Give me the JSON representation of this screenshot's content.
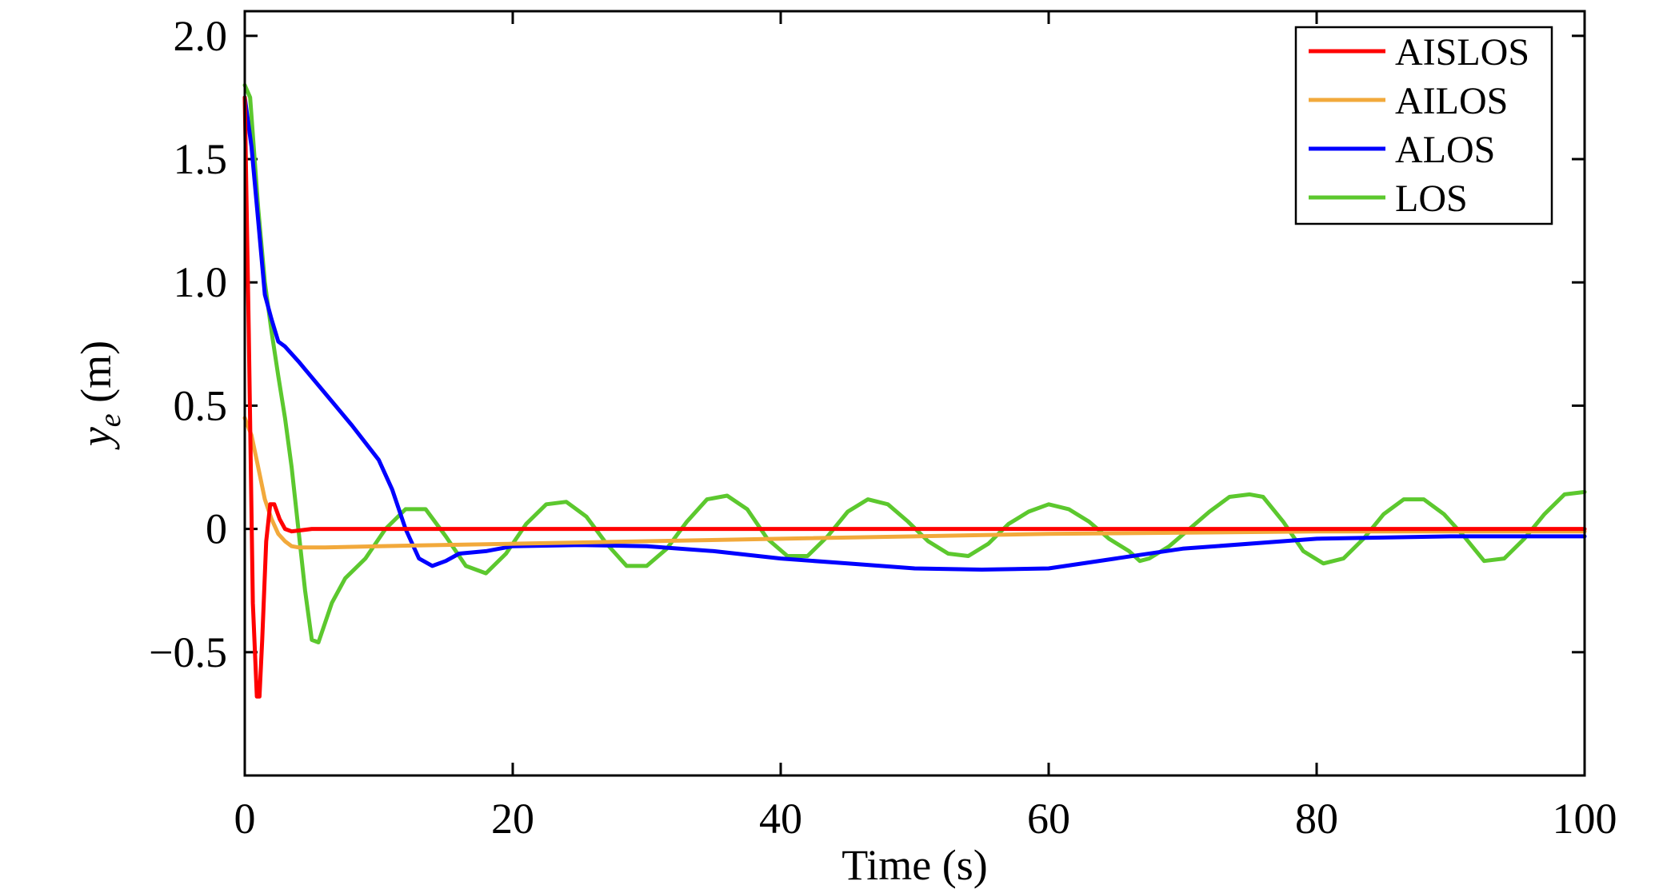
{
  "chart_data": {
    "type": "line",
    "title": "",
    "xlabel": "Time (s)",
    "ylabel": {
      "main": "y",
      "sub": "e",
      "unit": " (m)"
    },
    "xlim": [
      0,
      100
    ],
    "ylim": [
      -1.0,
      2.1
    ],
    "xticks": [
      0,
      20,
      40,
      60,
      80,
      100
    ],
    "xtick_labels": [
      "0",
      "20",
      "40",
      "60",
      "80",
      "100"
    ],
    "yticks": [
      -0.5,
      0,
      0.5,
      1.0,
      1.5,
      2.0
    ],
    "ytick_labels": [
      "−0.5",
      "0",
      "0.5",
      "1.0",
      "1.5",
      "2.0"
    ],
    "grid": false,
    "legend_position": "top-right",
    "series": [
      {
        "name": "AISLOS",
        "color": "#ff0000",
        "x": [
          0,
          0.3,
          0.6,
          0.9,
          1.1,
          1.3,
          1.6,
          1.9,
          2.2,
          2.6,
          3.0,
          3.5,
          5,
          10,
          20,
          40,
          60,
          80,
          100
        ],
        "y": [
          1.75,
          0.8,
          -0.3,
          -0.68,
          -0.68,
          -0.45,
          -0.05,
          0.1,
          0.1,
          0.04,
          0.0,
          -0.01,
          0.0,
          0.0,
          0.0,
          0.0,
          0.0,
          0.0,
          0.0
        ]
      },
      {
        "name": "AILOS",
        "color": "#f2a93b",
        "x": [
          0,
          0.5,
          1.0,
          1.5,
          2.0,
          2.5,
          3.0,
          3.5,
          4.0,
          6,
          10,
          20,
          30,
          40,
          60,
          80,
          100
        ],
        "y": [
          0.45,
          0.38,
          0.25,
          0.12,
          0.04,
          -0.02,
          -0.05,
          -0.07,
          -0.075,
          -0.075,
          -0.07,
          -0.06,
          -0.05,
          -0.04,
          -0.02,
          -0.01,
          -0.01
        ]
      },
      {
        "name": "ALOS",
        "color": "#0000ff",
        "x": [
          0,
          0.5,
          1.0,
          1.5,
          2.0,
          2.5,
          3,
          4,
          6,
          8,
          10,
          11,
          12,
          13,
          14,
          15,
          16,
          18,
          20,
          25,
          30,
          35,
          40,
          45,
          50,
          55,
          60,
          65,
          70,
          80,
          90,
          100
        ],
        "y": [
          1.75,
          1.55,
          1.25,
          0.95,
          0.85,
          0.76,
          0.74,
          0.68,
          0.55,
          0.42,
          0.28,
          0.16,
          0.0,
          -0.12,
          -0.15,
          -0.13,
          -0.1,
          -0.09,
          -0.07,
          -0.065,
          -0.07,
          -0.09,
          -0.12,
          -0.14,
          -0.16,
          -0.165,
          -0.16,
          -0.12,
          -0.08,
          -0.04,
          -0.03,
          -0.03
        ]
      },
      {
        "name": "LOS",
        "color": "#5cc82e",
        "x": [
          0,
          0.4,
          1.0,
          1.5,
          2.0,
          2.5,
          3.0,
          3.5,
          4.0,
          4.5,
          5.0,
          5.5,
          6.5,
          7.5,
          9,
          10.5,
          12.0,
          13.5,
          15.0,
          16.5,
          18.0,
          19.5,
          21.0,
          22.5,
          24.0,
          25.5,
          27.0,
          28.5,
          30.0,
          31.5,
          33.0,
          34.5,
          36.0,
          37.5,
          39.0,
          40.5,
          42.0,
          43.5,
          45.0,
          46.5,
          48.0,
          49.5,
          51.0,
          52.5,
          54.0,
          55.5,
          57.0,
          58.5,
          60.0,
          61.5,
          63.0,
          64.5,
          66.0,
          66.8,
          67.5,
          69.0,
          70.5,
          72.0,
          73.5,
          75.0,
          76.0,
          77.5,
          79.0,
          80.5,
          82.0,
          83.5,
          85.0,
          86.5,
          88.0,
          89.5,
          91.0,
          92.5,
          94.0,
          95.5,
          97.0,
          98.5,
          100
        ],
        "y": [
          1.8,
          1.75,
          1.3,
          1.0,
          0.8,
          0.62,
          0.45,
          0.25,
          0.0,
          -0.25,
          -0.45,
          -0.46,
          -0.3,
          -0.2,
          -0.12,
          0.0,
          0.08,
          0.08,
          -0.03,
          -0.15,
          -0.18,
          -0.1,
          0.02,
          0.1,
          0.11,
          0.05,
          -0.06,
          -0.15,
          -0.15,
          -0.08,
          0.03,
          0.12,
          0.135,
          0.08,
          -0.04,
          -0.11,
          -0.11,
          -0.03,
          0.07,
          0.12,
          0.1,
          0.03,
          -0.05,
          -0.1,
          -0.11,
          -0.06,
          0.02,
          0.07,
          0.1,
          0.08,
          0.03,
          -0.04,
          -0.09,
          -0.13,
          -0.12,
          -0.07,
          0.0,
          0.07,
          0.13,
          0.14,
          0.13,
          0.03,
          -0.09,
          -0.14,
          -0.12,
          -0.04,
          0.06,
          0.12,
          0.12,
          0.06,
          -0.03,
          -0.13,
          -0.12,
          -0.04,
          0.06,
          0.14,
          0.15
        ]
      }
    ]
  }
}
